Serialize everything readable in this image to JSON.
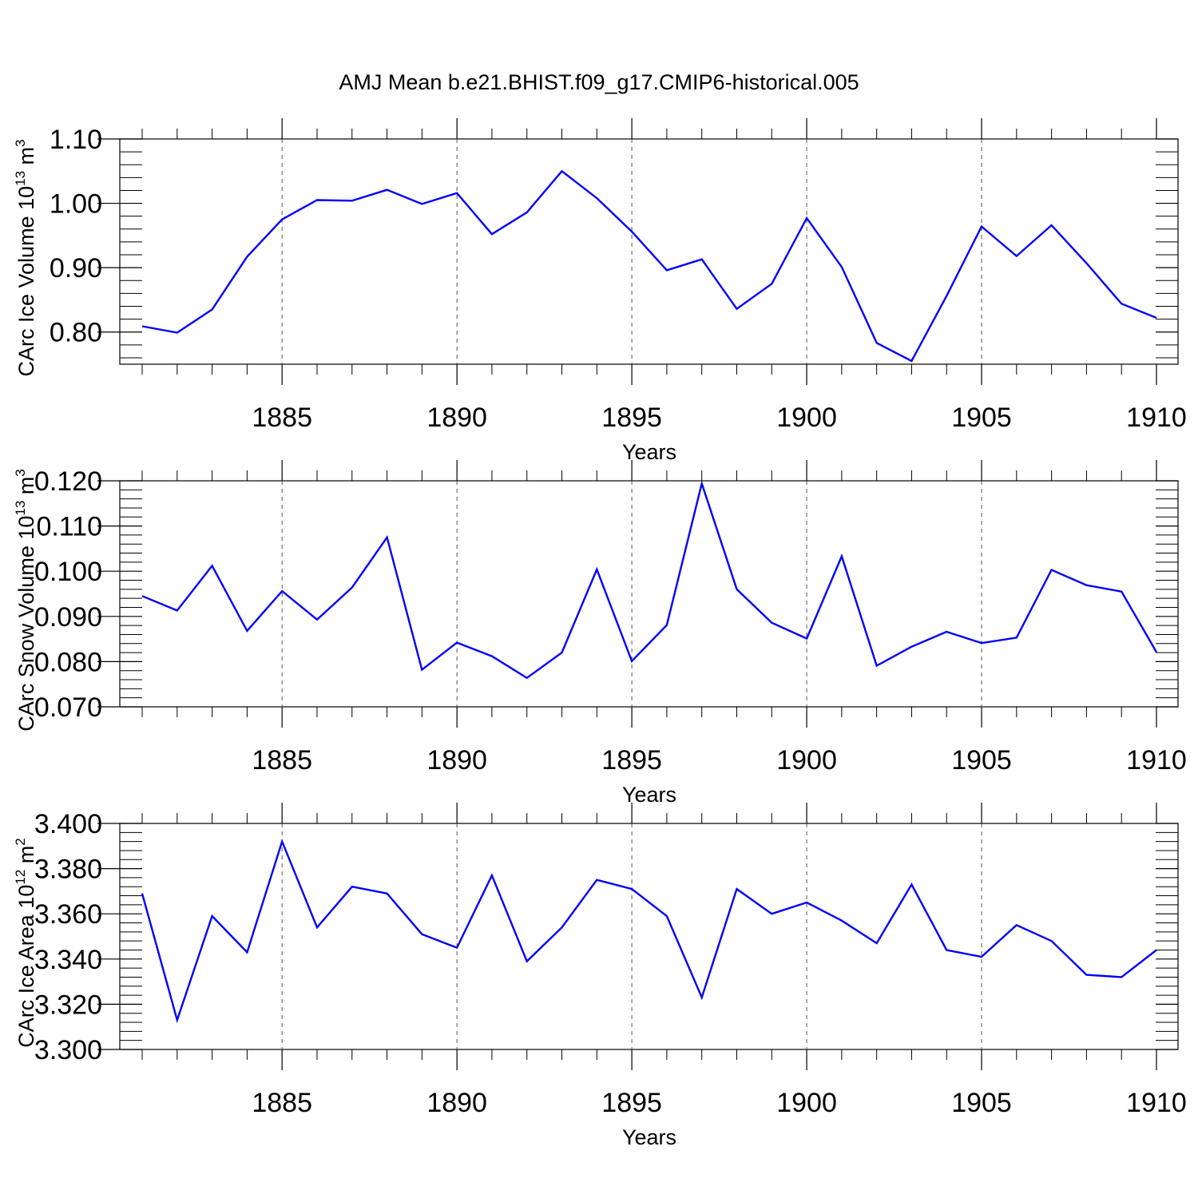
{
  "title": "AMJ Mean b.e21.BHIST.f09_g17.CMIP6-historical.005",
  "colors": {
    "series": "#0000ff",
    "axis": "#000000",
    "grid": "#555555"
  },
  "chart_data": [
    {
      "type": "line",
      "xlabel": "Years",
      "ylabel": {
        "base": "CArc Ice Volume 10",
        "exp": "13",
        "unit": " m",
        "unit_exp": "3"
      },
      "xlim": [
        1881,
        1910
      ],
      "ylim": [
        0.75,
        1.1
      ],
      "x_ticks": [
        1885,
        1890,
        1895,
        1900,
        1905,
        1910
      ],
      "y_ticks": [
        0.8,
        0.9,
        1.0,
        1.1
      ],
      "y_tick_labels": [
        "0.80",
        "0.90",
        "1.00",
        "1.10"
      ],
      "grid": "vertical dashed at major x ticks",
      "x": [
        1881,
        1882,
        1883,
        1884,
        1885,
        1886,
        1887,
        1888,
        1889,
        1890,
        1891,
        1892,
        1893,
        1894,
        1895,
        1896,
        1897,
        1898,
        1899,
        1900,
        1901,
        1902,
        1903,
        1904,
        1905,
        1906,
        1907,
        1908,
        1909,
        1910
      ],
      "values": [
        0.809,
        0.799,
        0.835,
        0.917,
        0.975,
        1.005,
        1.004,
        1.021,
        0.999,
        1.016,
        0.952,
        0.986,
        1.05,
        1.008,
        0.956,
        0.896,
        0.913,
        0.836,
        0.875,
        0.977,
        0.901,
        0.783,
        0.755,
        0.856,
        0.964,
        0.918,
        0.966,
        0.907,
        0.844,
        0.822
      ]
    },
    {
      "type": "line",
      "xlabel": "Years",
      "ylabel": {
        "base": "CArc Snow Volume 10",
        "exp": "13",
        "unit": " m",
        "unit_exp": "3"
      },
      "xlim": [
        1881,
        1910
      ],
      "ylim": [
        0.07,
        0.12
      ],
      "x_ticks": [
        1885,
        1890,
        1895,
        1900,
        1905,
        1910
      ],
      "y_ticks": [
        0.07,
        0.08,
        0.09,
        0.1,
        0.11,
        0.12
      ],
      "y_tick_labels": [
        "0.070",
        "0.080",
        "0.090",
        "0.100",
        "0.110",
        "0.120"
      ],
      "grid": "vertical dashed at major x ticks",
      "x": [
        1881,
        1882,
        1883,
        1884,
        1885,
        1886,
        1887,
        1888,
        1889,
        1890,
        1891,
        1892,
        1893,
        1894,
        1895,
        1896,
        1897,
        1898,
        1899,
        1900,
        1901,
        1902,
        1903,
        1904,
        1905,
        1906,
        1907,
        1908,
        1909,
        1910
      ],
      "values": [
        0.0945,
        0.0913,
        0.1012,
        0.0868,
        0.0956,
        0.0893,
        0.0964,
        0.1075,
        0.0782,
        0.0842,
        0.0812,
        0.0764,
        0.082,
        0.1004,
        0.0801,
        0.0881,
        0.1194,
        0.096,
        0.0886,
        0.0851,
        0.1033,
        0.0791,
        0.0833,
        0.0866,
        0.0841,
        0.0853,
        0.1003,
        0.0969,
        0.0955,
        0.0821
      ]
    },
    {
      "type": "line",
      "xlabel": "Years",
      "ylabel": {
        "base": "CArc Ice Area 10",
        "exp": "12",
        "unit": " m",
        "unit_exp": "2"
      },
      "xlim": [
        1881,
        1910
      ],
      "ylim": [
        3.3,
        3.4
      ],
      "x_ticks": [
        1885,
        1890,
        1895,
        1900,
        1905,
        1910
      ],
      "y_ticks": [
        3.3,
        3.32,
        3.34,
        3.36,
        3.38,
        3.4
      ],
      "y_tick_labels": [
        "3.300",
        "3.320",
        "3.340",
        "3.360",
        "3.380",
        "3.400"
      ],
      "grid": "vertical dashed at major x ticks",
      "x": [
        1881,
        1882,
        1883,
        1884,
        1885,
        1886,
        1887,
        1888,
        1889,
        1890,
        1891,
        1892,
        1893,
        1894,
        1895,
        1896,
        1897,
        1898,
        1899,
        1900,
        1901,
        1902,
        1903,
        1904,
        1905,
        1906,
        1907,
        1908,
        1909,
        1910
      ],
      "values": [
        3.369,
        3.313,
        3.359,
        3.343,
        3.392,
        3.354,
        3.372,
        3.369,
        3.351,
        3.345,
        3.377,
        3.339,
        3.354,
        3.375,
        3.371,
        3.359,
        3.323,
        3.371,
        3.36,
        3.365,
        3.357,
        3.347,
        3.373,
        3.344,
        3.341,
        3.355,
        3.348,
        3.333,
        3.332,
        3.344
      ]
    }
  ]
}
